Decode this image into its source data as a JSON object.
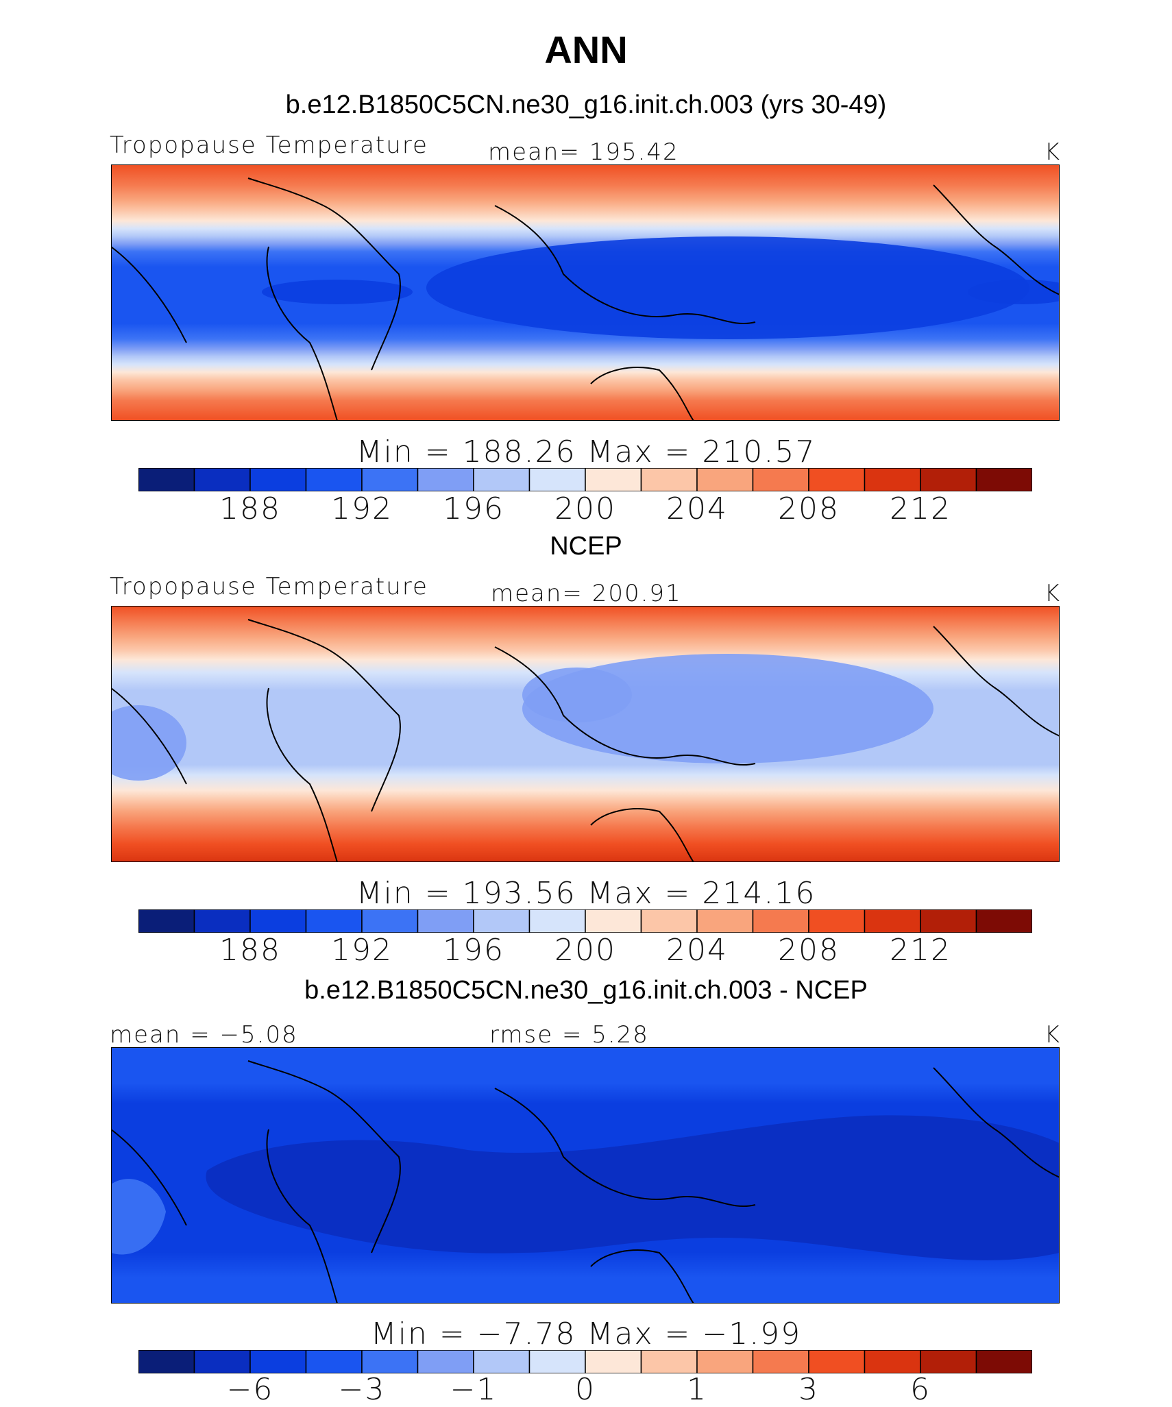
{
  "title": "ANN",
  "colormap": [
    "#0a1e78",
    "#0a2ec0",
    "#0b3ee0",
    "#1a55f0",
    "#3c73f5",
    "#7f9ef5",
    "#b2c8f8",
    "#d6e4fb",
    "#fde7d8",
    "#fcc6a8",
    "#f9a57d",
    "#f57a4f",
    "#f04f22",
    "#da3410",
    "#b21f08",
    "#7d0b05"
  ],
  "chart_data": [
    {
      "type": "heatmap",
      "panel_title": "b.e12.B1850C5CN.ne30_g16.init.ch.003 (yrs 30-49)",
      "variable": "Tropopause Temperature",
      "mean_label": "mean= 195.42",
      "units": "K",
      "min_max_label": "Min = 188.26 Max = 210.57",
      "min": 188.26,
      "max": 210.57,
      "mean": 195.42,
      "colorbar_ticks": [
        "188",
        "192",
        "196",
        "200",
        "204",
        "208",
        "212"
      ]
    },
    {
      "type": "heatmap",
      "panel_title": "NCEP",
      "variable": "Tropopause Temperature",
      "mean_label": "mean= 200.91",
      "units": "K",
      "min_max_label": "Min = 193.56 Max = 214.16",
      "min": 193.56,
      "max": 214.16,
      "mean": 200.91,
      "colorbar_ticks": [
        "188",
        "192",
        "196",
        "200",
        "204",
        "208",
        "212"
      ]
    },
    {
      "type": "heatmap",
      "panel_title": "b.e12.B1850C5CN.ne30_g16.init.ch.003 - NCEP",
      "mean_label": "mean = −5.08",
      "rmse_label": "rmse = 5.28",
      "units": "K",
      "min_max_label": "Min = −7.78 Max = −1.99",
      "min": -7.78,
      "max": -1.99,
      "mean": -5.08,
      "rmse": 5.28,
      "colorbar_ticks": [
        "−6",
        "−3",
        "−1",
        "0",
        "1",
        "3",
        "6"
      ]
    }
  ]
}
